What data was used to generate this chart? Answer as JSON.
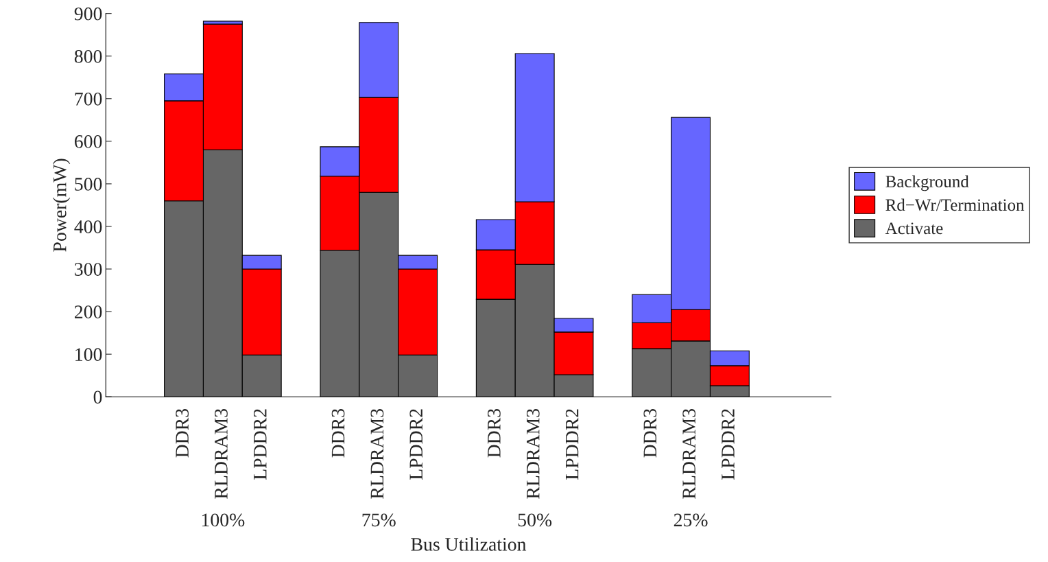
{
  "chart_data": {
    "type": "bar",
    "stacked": true,
    "xlabel": "Bus Utilization",
    "ylabel": "Power(mW)",
    "categories": [
      "DDR3",
      "RLDRAM3",
      "LPDDR2",
      null,
      "DDR3",
      "RLDRAM3",
      "LPDDR2",
      null,
      "DDR3",
      "RLDRAM3",
      "LPDDR2",
      null,
      "DDR3",
      "RLDRAM3",
      "LPDDR2"
    ],
    "series": [
      {
        "name": "Activate",
        "color": "#666666",
        "values": [
          460,
          580,
          98,
          null,
          344,
          480,
          98,
          null,
          229,
          311,
          52,
          null,
          113,
          131,
          26
        ]
      },
      {
        "name": "Rd−Wr/Termination",
        "color": "#ff0000",
        "values": [
          235,
          295,
          202,
          null,
          174,
          223,
          202,
          null,
          116,
          147,
          100,
          null,
          61,
          74,
          47
        ]
      },
      {
        "name": "Background",
        "color": "#6666ff",
        "values": [
          63,
          7,
          32,
          null,
          69,
          176,
          32,
          null,
          71,
          348,
          32,
          null,
          66,
          451,
          35
        ]
      }
    ],
    "annotations": [
      "100%",
      "75%",
      "50%",
      "25%"
    ],
    "ylim": [
      0,
      900
    ],
    "yticks": [
      0,
      100,
      200,
      300,
      400,
      500,
      600,
      700,
      800,
      900
    ],
    "legend": "right",
    "grid": false
  }
}
